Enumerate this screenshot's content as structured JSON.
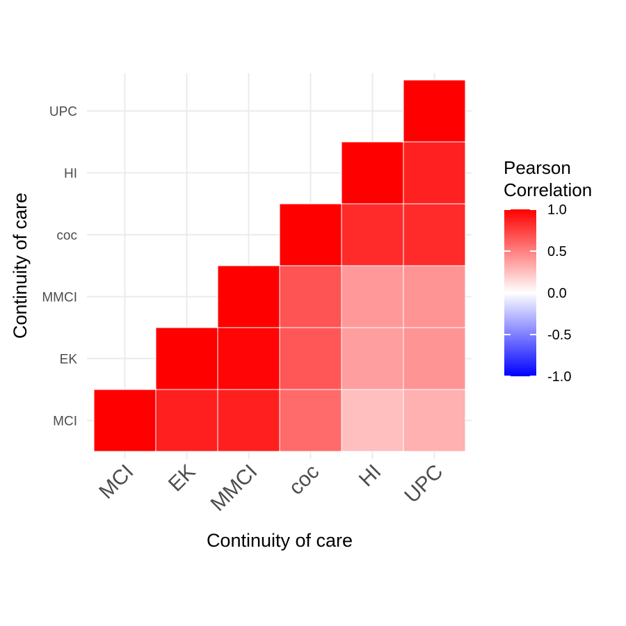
{
  "chart_data": {
    "type": "heatmap",
    "title": "",
    "xlabel": "Continuity of care",
    "ylabel": "Continuity of care",
    "categories": [
      "MCI",
      "EK",
      "MMCI",
      "coc",
      "HI",
      "UPC"
    ],
    "cells": [
      {
        "x": "MCI",
        "y": "MCI",
        "value": 1.0
      },
      {
        "x": "EK",
        "y": "MCI",
        "value": 0.88
      },
      {
        "x": "MMCI",
        "y": "MCI",
        "value": 0.88
      },
      {
        "x": "coc",
        "y": "MCI",
        "value": 0.58
      },
      {
        "x": "HI",
        "y": "MCI",
        "value": 0.25
      },
      {
        "x": "UPC",
        "y": "MCI",
        "value": 0.31
      },
      {
        "x": "EK",
        "y": "EK",
        "value": 1.0
      },
      {
        "x": "MMCI",
        "y": "EK",
        "value": 0.98
      },
      {
        "x": "coc",
        "y": "EK",
        "value": 0.66
      },
      {
        "x": "HI",
        "y": "EK",
        "value": 0.38
      },
      {
        "x": "UPC",
        "y": "EK",
        "value": 0.42
      },
      {
        "x": "MMCI",
        "y": "MMCI",
        "value": 1.0
      },
      {
        "x": "coc",
        "y": "MMCI",
        "value": 0.67
      },
      {
        "x": "HI",
        "y": "MMCI",
        "value": 0.4
      },
      {
        "x": "UPC",
        "y": "MMCI",
        "value": 0.42
      },
      {
        "x": "coc",
        "y": "coc",
        "value": 1.0
      },
      {
        "x": "HI",
        "y": "coc",
        "value": 0.83
      },
      {
        "x": "UPC",
        "y": "coc",
        "value": 0.83
      },
      {
        "x": "HI",
        "y": "HI",
        "value": 1.0
      },
      {
        "x": "UPC",
        "y": "HI",
        "value": 0.87
      },
      {
        "x": "UPC",
        "y": "UPC",
        "value": 1.0
      }
    ],
    "legend": {
      "title_lines": [
        "Pearson",
        "Correlation"
      ],
      "ticks": [
        "1.0",
        "0.5",
        "0.0",
        "-0.5",
        "-1.0"
      ],
      "limits": [
        -1.0,
        1.0
      ],
      "placement": "right"
    },
    "colors": {
      "low": "#0000ff",
      "mid": "#ffffff",
      "high": "#ff0000",
      "grid": "#ebebeb"
    },
    "grid": true
  }
}
